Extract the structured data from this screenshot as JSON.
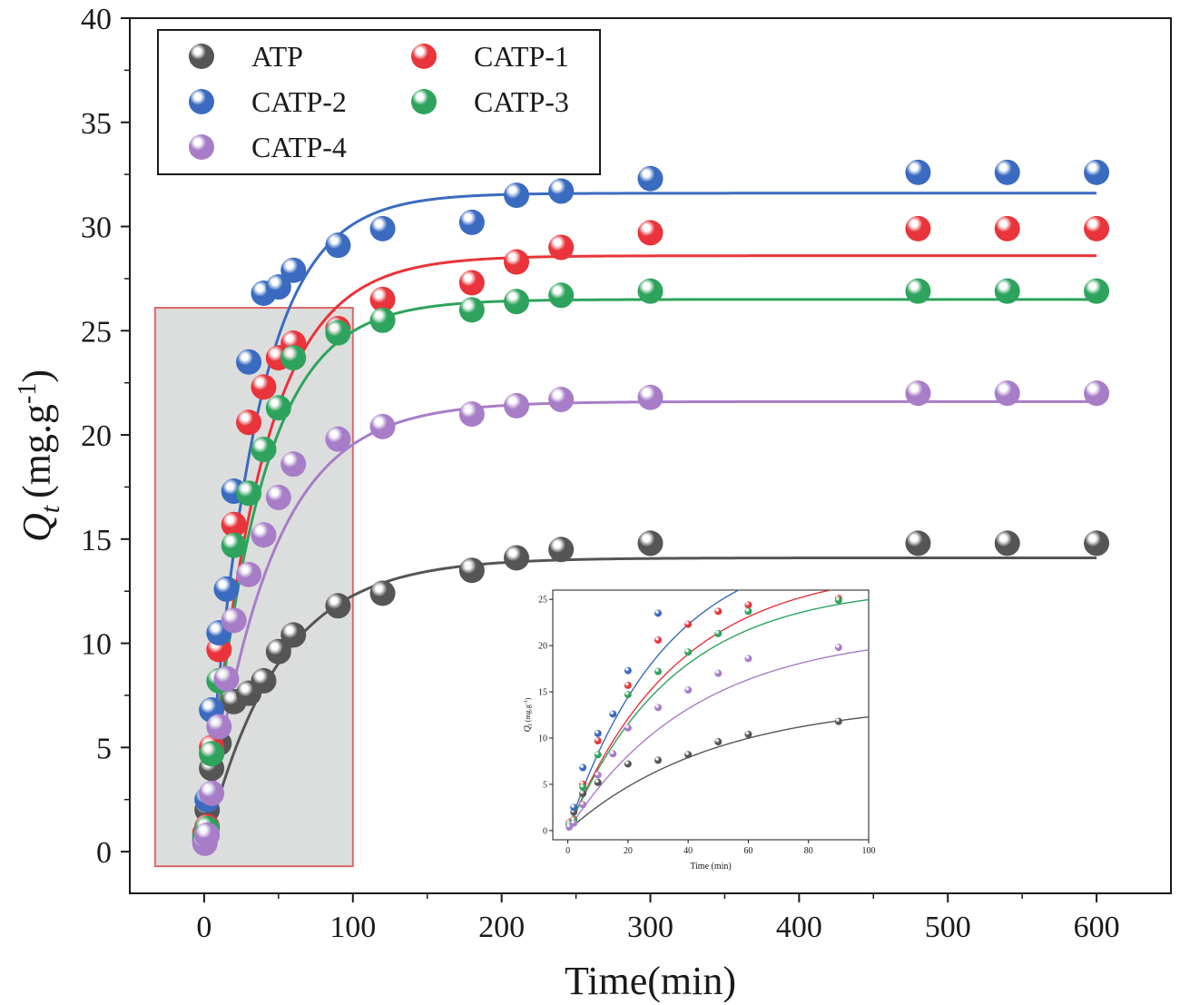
{
  "chart_data": {
    "type": "scatter",
    "title": "",
    "xlabel": "Time(min)",
    "ylabel_main": "Q",
    "ylabel_sub": "t",
    "ylabel_unit": "(mg.g",
    "ylabel_sup": "-1",
    "ylabel_close": ")",
    "xlim": [
      -50,
      650
    ],
    "ylim": [
      -2,
      40
    ],
    "xticks": [
      0,
      100,
      200,
      300,
      400,
      500,
      600
    ],
    "yticks": [
      0,
      5,
      10,
      15,
      20,
      25,
      30,
      35,
      40
    ],
    "legend_position": "top-left",
    "highlight_region": {
      "x": [
        -33,
        100
      ],
      "y": [
        -0.7,
        26.1
      ],
      "color": "#e06666",
      "fill": "#dcdedd"
    },
    "series": [
      {
        "name": "ATP",
        "color": "#555555",
        "x": [
          0.5,
          2,
          5,
          10,
          20,
          30,
          40,
          50,
          60,
          90,
          120,
          180,
          210,
          240,
          300,
          480,
          540,
          600
        ],
        "y": [
          0.6,
          2.0,
          4.0,
          5.2,
          7.2,
          7.6,
          8.2,
          9.6,
          10.4,
          11.8,
          12.4,
          13.5,
          14.1,
          14.5,
          14.8,
          14.8,
          14.8,
          14.8
        ],
        "fit": {
          "qe": 14.1,
          "k": 0.0205
        }
      },
      {
        "name": "CATP-1",
        "color": "#e8343a",
        "x": [
          0.5,
          2,
          5,
          10,
          20,
          30,
          40,
          50,
          60,
          90,
          120,
          180,
          210,
          240,
          300,
          480,
          540,
          600
        ],
        "y": [
          0.9,
          1.2,
          5.0,
          9.7,
          15.7,
          20.6,
          22.3,
          23.7,
          24.4,
          25.1,
          26.5,
          27.3,
          28.3,
          29.0,
          29.7,
          29.9,
          29.9,
          29.9
        ],
        "fit": {
          "qe": 28.6,
          "k": 0.0275
        }
      },
      {
        "name": "CATP-2",
        "color": "#3a6bc0",
        "x": [
          0.5,
          2,
          5,
          10,
          15,
          20,
          30,
          40,
          50,
          60,
          90,
          120,
          180,
          210,
          240,
          300,
          480,
          540,
          600
        ],
        "y": [
          0.5,
          2.5,
          6.8,
          10.5,
          12.6,
          17.3,
          23.5,
          26.8,
          27.1,
          27.9,
          29.1,
          29.9,
          30.2,
          31.5,
          31.7,
          32.3,
          32.6,
          32.6,
          32.6
        ],
        "fit": {
          "qe": 31.6,
          "k": 0.0305
        }
      },
      {
        "name": "CATP-3",
        "color": "#2ea35d",
        "x": [
          0.5,
          2,
          5,
          10,
          20,
          30,
          40,
          50,
          60,
          90,
          120,
          180,
          210,
          240,
          300,
          480,
          540,
          600
        ],
        "y": [
          0.7,
          1.1,
          4.7,
          8.2,
          14.7,
          17.2,
          19.3,
          21.3,
          23.7,
          24.9,
          25.5,
          26.0,
          26.4,
          26.7,
          26.9,
          26.9,
          26.9,
          26.9
        ],
        "fit": {
          "qe": 26.5,
          "k": 0.0285
        }
      },
      {
        "name": "CATP-4",
        "color": "#a77dc8",
        "x": [
          0.5,
          2,
          5,
          10,
          15,
          20,
          30,
          40,
          50,
          60,
          90,
          120,
          180,
          210,
          240,
          300,
          480,
          540,
          600
        ],
        "y": [
          0.4,
          0.8,
          2.8,
          6.0,
          8.3,
          11.1,
          13.3,
          15.2,
          17.0,
          18.6,
          19.8,
          20.4,
          21.0,
          21.4,
          21.7,
          21.8,
          22.0,
          22.0,
          22.0
        ],
        "fit": {
          "qe": 21.6,
          "k": 0.0235
        }
      }
    ],
    "inset": {
      "type": "scatter",
      "xlabel": "Time (min)",
      "ylabel_main": "Q",
      "ylabel_sub": "t",
      "ylabel_unit": "(mg.g",
      "ylabel_sup": "-1",
      "ylabel_close": ")",
      "xlim": [
        -5,
        100
      ],
      "ylim": [
        -1,
        26
      ],
      "xticks": [
        0,
        20,
        40,
        60,
        80,
        100
      ],
      "yticks": [
        0,
        5,
        10,
        15,
        20,
        25
      ]
    }
  }
}
